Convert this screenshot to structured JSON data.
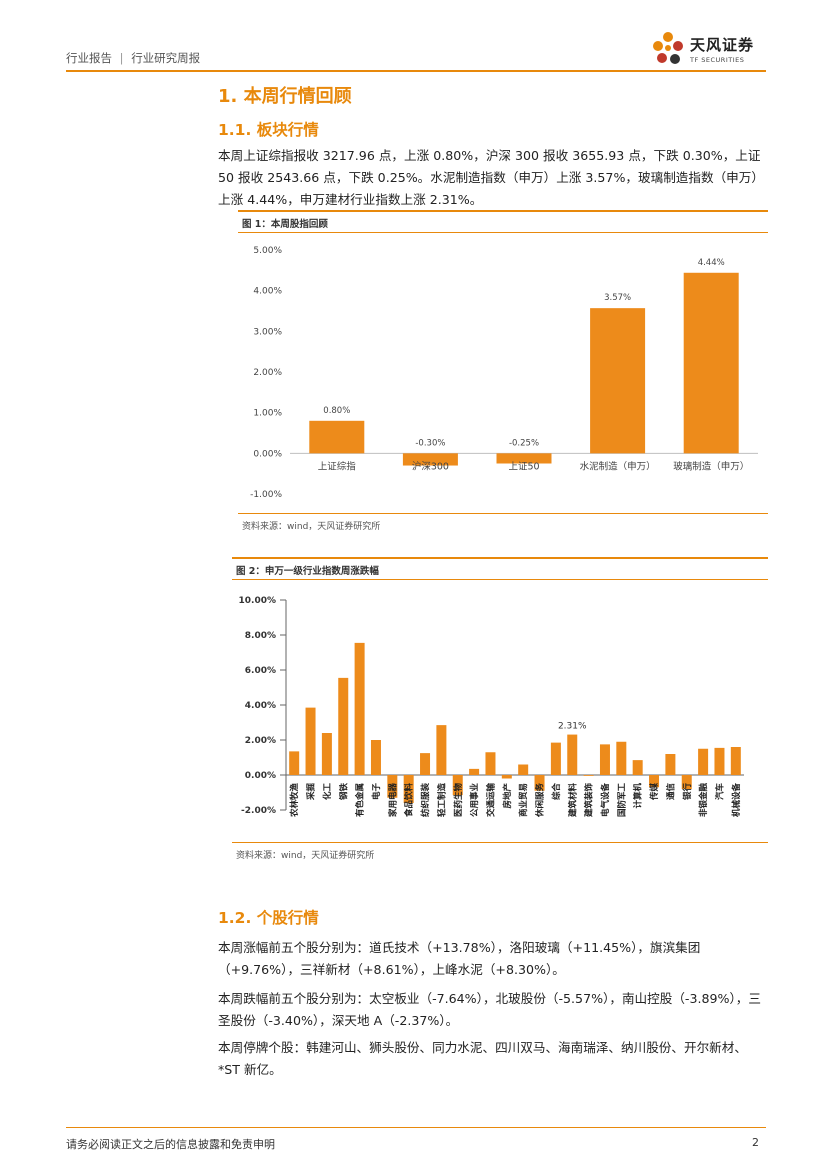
{
  "header": {
    "report_type": "行业报告",
    "separator": "|",
    "report_subtype": "行业研究周报",
    "brand_cn": "天风证券",
    "brand_en": "TF SECURITIES"
  },
  "section1": {
    "title": "1. 本周行情回顾",
    "sub1_title": "1.1. 板块行情",
    "sub1_paragraph": "本周上证综指报收 3217.96 点，上涨 0.80%，沪深 300 报收 3655.93 点，下跌 0.30%，上证 50 报收 2543.66 点，下跌 0.25%。水泥制造指数（申万）上涨 3.57%，玻璃制造指数（申万）上涨 4.44%，申万建材行业指数上涨 2.31%。",
    "sub2_title": "1.2. 个股行情",
    "sub2_paragraphs": [
      "本周涨幅前五个股分别为：道氏技术（+13.78%），洛阳玻璃（+11.45%），旗滨集团（+9.76%），三祥新材（+8.61%），上峰水泥（+8.30%）。",
      "本周跌幅前五个股分别为：太空板业（-7.64%），北玻股份（-5.57%），南山控股（-3.89%），三圣股份（-3.40%），深天地 A（-2.37%）。",
      "本周停牌个股：韩建河山、狮头股份、同力水泥、四川双马、海南瑞泽、纳川股份、开尔新材、*ST 新亿。"
    ]
  },
  "figure1": {
    "title": "图 1：本周股指回顾",
    "source": "资料来源：wind，天风证券研究所"
  },
  "figure2": {
    "title": "图 2：申万一级行业指数周涨跌幅",
    "source": "资料来源：wind，天风证券研究所"
  },
  "footer": {
    "disclaimer": "请务必阅读正文之后的信息披露和免责申明",
    "page_number": "2"
  },
  "colors": {
    "accent": "#E8890C",
    "bar": "#ED8B1B"
  },
  "chart_data": [
    {
      "type": "bar",
      "title": "图 1：本周股指回顾",
      "categories": [
        "上证综指",
        "沪深300",
        "上证50",
        "水泥制造（申万）",
        "玻璃制造（申万）"
      ],
      "values": [
        0.8,
        -0.3,
        -0.25,
        3.57,
        4.44
      ],
      "data_labels": [
        "0.80%",
        "-0.30%",
        "-0.25%",
        "3.57%",
        "4.44%"
      ],
      "yticks": [
        "5.00%",
        "4.00%",
        "3.00%",
        "2.00%",
        "1.00%",
        "0.00%",
        "-1.00%"
      ],
      "ylim": [
        -1,
        5
      ],
      "grid": false,
      "legend": "none"
    },
    {
      "type": "bar",
      "title": "图 2：申万一级行业指数周涨跌幅",
      "categories": [
        "农林牧渔",
        "采掘",
        "化工",
        "钢铁",
        "有色金属",
        "电子",
        "家用电器",
        "食品饮料",
        "纺织服装",
        "轻工制造",
        "医药生物",
        "公用事业",
        "交通运输",
        "房地产",
        "商业贸易",
        "休闲服务",
        "综合",
        "建筑材料",
        "建筑装饰",
        "电气设备",
        "国防军工",
        "计算机",
        "传媒",
        "通信",
        "银行",
        "非银金融",
        "汽车",
        "机械设备"
      ],
      "values": [
        1.35,
        3.85,
        2.4,
        5.55,
        7.55,
        2.0,
        -1.3,
        -1.6,
        1.25,
        2.85,
        -1.15,
        0.35,
        1.3,
        -0.2,
        0.6,
        -0.9,
        1.85,
        2.31,
        -0.05,
        1.75,
        1.9,
        0.85,
        -0.7,
        1.2,
        -0.8,
        1.5,
        1.55,
        1.6
      ],
      "annotation": "2.31%",
      "yticks": [
        "10.00%",
        "8.00%",
        "6.00%",
        "4.00%",
        "2.00%",
        "0.00%",
        "-2.00%"
      ],
      "ylim": [
        -2,
        10
      ],
      "grid": false,
      "legend": "none"
    }
  ]
}
